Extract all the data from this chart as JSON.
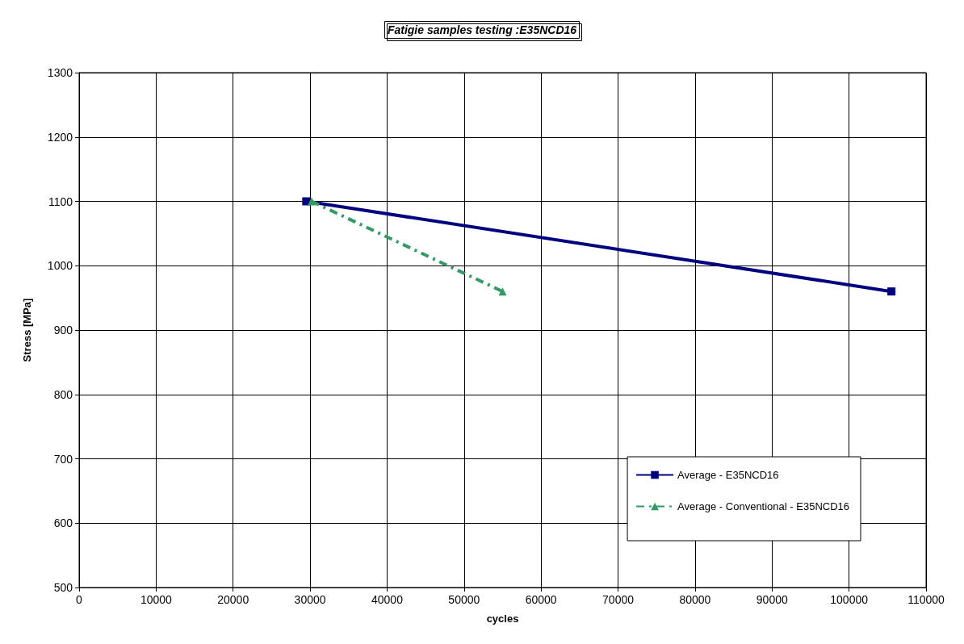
{
  "chart_data": {
    "type": "line",
    "title": "Fatigie samples testing :E35NCD16",
    "xlabel": "cycles",
    "ylabel": "Stress [MPa]",
    "xlim": [
      0,
      110000
    ],
    "xticks": [
      0,
      10000,
      20000,
      30000,
      40000,
      50000,
      60000,
      70000,
      80000,
      90000,
      100000,
      110000
    ],
    "ylim": [
      500,
      1300
    ],
    "yticks": [
      500,
      600,
      700,
      800,
      900,
      1000,
      1100,
      1200,
      1300
    ],
    "grid": true,
    "legend": "bottom right",
    "series": [
      {
        "name": "Average - E35NCD16",
        "color": "#000080",
        "x": [
          29500,
          105500
        ],
        "values": [
          1100,
          960
        ],
        "marker": "square",
        "line_style": "solid"
      },
      {
        "name": "Average - Conventional - E35NCD16",
        "color": "#339966",
        "x": [
          30200,
          55000
        ],
        "values": [
          1100,
          960
        ],
        "marker": "triangle",
        "line_style": "dashed"
      }
    ]
  }
}
